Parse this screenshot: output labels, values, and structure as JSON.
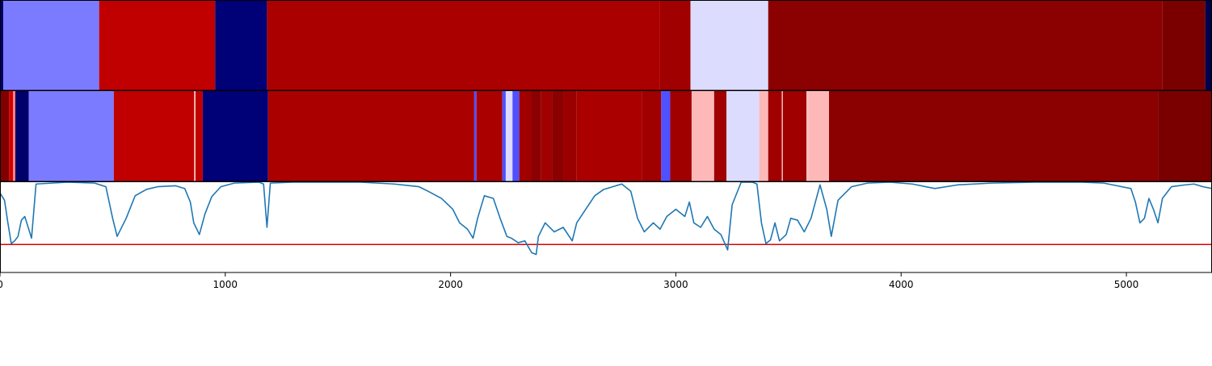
{
  "chart_data": [
    {
      "type": "heatmap",
      "x_range": [
        0,
        5380
      ],
      "segments": [
        {
          "start": 0,
          "end": 15,
          "color": "#000070"
        },
        {
          "start": 15,
          "end": 440,
          "color": "#7b7bff"
        },
        {
          "start": 440,
          "end": 955,
          "color": "#c00000"
        },
        {
          "start": 955,
          "end": 1185,
          "color": "#000077"
        },
        {
          "start": 1185,
          "end": 2930,
          "color": "#ab0000"
        },
        {
          "start": 2930,
          "end": 3065,
          "color": "#a00000"
        },
        {
          "start": 3065,
          "end": 3410,
          "color": "#dcdcff"
        },
        {
          "start": 3410,
          "end": 5160,
          "color": "#8b0000"
        },
        {
          "start": 5160,
          "end": 5350,
          "color": "#7a0000"
        },
        {
          "start": 5350,
          "end": 5380,
          "color": "#00004c"
        }
      ]
    },
    {
      "type": "heatmap",
      "x_range": [
        0,
        5380
      ],
      "segments": [
        {
          "start": 0,
          "end": 40,
          "color": "#800000"
        },
        {
          "start": 40,
          "end": 58,
          "color": "#d00000"
        },
        {
          "start": 58,
          "end": 68,
          "color": "#ff8080"
        },
        {
          "start": 68,
          "end": 128,
          "color": "#00006a"
        },
        {
          "start": 128,
          "end": 505,
          "color": "#7b7bff"
        },
        {
          "start": 505,
          "end": 862,
          "color": "#c00000"
        },
        {
          "start": 862,
          "end": 868,
          "color": "#ffc0c0"
        },
        {
          "start": 868,
          "end": 900,
          "color": "#c00000"
        },
        {
          "start": 900,
          "end": 1190,
          "color": "#000077"
        },
        {
          "start": 1190,
          "end": 2105,
          "color": "#ab0000"
        },
        {
          "start": 2105,
          "end": 2115,
          "color": "#5050ff"
        },
        {
          "start": 2115,
          "end": 2230,
          "color": "#ab0000"
        },
        {
          "start": 2230,
          "end": 2245,
          "color": "#5050ff"
        },
        {
          "start": 2245,
          "end": 2275,
          "color": "#dcdcff"
        },
        {
          "start": 2275,
          "end": 2305,
          "color": "#5050ff"
        },
        {
          "start": 2305,
          "end": 2360,
          "color": "#a00000"
        },
        {
          "start": 2360,
          "end": 2400,
          "color": "#8b0000"
        },
        {
          "start": 2400,
          "end": 2450,
          "color": "#a00000"
        },
        {
          "start": 2450,
          "end": 2500,
          "color": "#8b0000"
        },
        {
          "start": 2500,
          "end": 2560,
          "color": "#9a0000"
        },
        {
          "start": 2560,
          "end": 2850,
          "color": "#ab0000"
        },
        {
          "start": 2850,
          "end": 2935,
          "color": "#a00000"
        },
        {
          "start": 2935,
          "end": 2975,
          "color": "#5050ff"
        },
        {
          "start": 2975,
          "end": 3070,
          "color": "#a00000"
        },
        {
          "start": 3070,
          "end": 3170,
          "color": "#ffb8b8"
        },
        {
          "start": 3170,
          "end": 3225,
          "color": "#a00000"
        },
        {
          "start": 3225,
          "end": 3370,
          "color": "#dcdcff"
        },
        {
          "start": 3370,
          "end": 3410,
          "color": "#ffb8b8"
        },
        {
          "start": 3410,
          "end": 3470,
          "color": "#a00000"
        },
        {
          "start": 3470,
          "end": 3475,
          "color": "#ffc0c0"
        },
        {
          "start": 3475,
          "end": 3580,
          "color": "#a00000"
        },
        {
          "start": 3580,
          "end": 3590,
          "color": "#ffc0c0"
        },
        {
          "start": 3590,
          "end": 3680,
          "color": "#ffb8b8"
        },
        {
          "start": 3680,
          "end": 5140,
          "color": "#8b0000"
        },
        {
          "start": 5140,
          "end": 5380,
          "color": "#7a0000"
        }
      ]
    },
    {
      "type": "line",
      "x_range": [
        0,
        5380
      ],
      "xticks": [
        0,
        1000,
        2000,
        3000,
        4000,
        5000
      ],
      "xtick_labels": [
        "0",
        "1000",
        "2000",
        "3000",
        "4000",
        "5000"
      ],
      "ylim": [
        0,
        1
      ],
      "threshold": 0.31,
      "threshold_color": "#e00000",
      "line_color": "#1f77b4",
      "points": [
        [
          0,
          0.88
        ],
        [
          20,
          0.8
        ],
        [
          35,
          0.55
        ],
        [
          50,
          0.32
        ],
        [
          65,
          0.35
        ],
        [
          80,
          0.4
        ],
        [
          95,
          0.58
        ],
        [
          110,
          0.62
        ],
        [
          125,
          0.5
        ],
        [
          140,
          0.38
        ],
        [
          160,
          0.98
        ],
        [
          300,
          1.0
        ],
        [
          420,
          0.99
        ],
        [
          470,
          0.95
        ],
        [
          500,
          0.6
        ],
        [
          520,
          0.4
        ],
        [
          560,
          0.6
        ],
        [
          600,
          0.85
        ],
        [
          650,
          0.92
        ],
        [
          700,
          0.95
        ],
        [
          780,
          0.96
        ],
        [
          820,
          0.93
        ],
        [
          845,
          0.78
        ],
        [
          860,
          0.55
        ],
        [
          885,
          0.42
        ],
        [
          910,
          0.65
        ],
        [
          940,
          0.84
        ],
        [
          980,
          0.95
        ],
        [
          1040,
          0.99
        ],
        [
          1150,
          1.0
        ],
        [
          1170,
          0.98
        ],
        [
          1185,
          0.5
        ],
        [
          1200,
          0.99
        ],
        [
          1300,
          1.0
        ],
        [
          1500,
          1.0
        ],
        [
          1600,
          1.0
        ],
        [
          1750,
          0.98
        ],
        [
          1860,
          0.95
        ],
        [
          1900,
          0.9
        ],
        [
          1960,
          0.82
        ],
        [
          2010,
          0.7
        ],
        [
          2040,
          0.55
        ],
        [
          2075,
          0.48
        ],
        [
          2100,
          0.38
        ],
        [
          2120,
          0.6
        ],
        [
          2150,
          0.85
        ],
        [
          2190,
          0.82
        ],
        [
          2220,
          0.6
        ],
        [
          2250,
          0.4
        ],
        [
          2270,
          0.38
        ],
        [
          2300,
          0.33
        ],
        [
          2330,
          0.35
        ],
        [
          2360,
          0.22
        ],
        [
          2380,
          0.2
        ],
        [
          2390,
          0.4
        ],
        [
          2420,
          0.55
        ],
        [
          2460,
          0.45
        ],
        [
          2500,
          0.5
        ],
        [
          2540,
          0.35
        ],
        [
          2560,
          0.55
        ],
        [
          2600,
          0.7
        ],
        [
          2640,
          0.85
        ],
        [
          2680,
          0.92
        ],
        [
          2720,
          0.95
        ],
        [
          2760,
          0.98
        ],
        [
          2800,
          0.9
        ],
        [
          2830,
          0.6
        ],
        [
          2860,
          0.45
        ],
        [
          2900,
          0.55
        ],
        [
          2930,
          0.48
        ],
        [
          2960,
          0.62
        ],
        [
          3000,
          0.7
        ],
        [
          3040,
          0.62
        ],
        [
          3060,
          0.78
        ],
        [
          3080,
          0.55
        ],
        [
          3110,
          0.5
        ],
        [
          3140,
          0.62
        ],
        [
          3170,
          0.48
        ],
        [
          3200,
          0.42
        ],
        [
          3230,
          0.25
        ],
        [
          3250,
          0.75
        ],
        [
          3290,
          1.0
        ],
        [
          3340,
          1.0
        ],
        [
          3360,
          0.98
        ],
        [
          3380,
          0.55
        ],
        [
          3400,
          0.32
        ],
        [
          3420,
          0.36
        ],
        [
          3440,
          0.55
        ],
        [
          3460,
          0.35
        ],
        [
          3490,
          0.42
        ],
        [
          3510,
          0.6
        ],
        [
          3540,
          0.58
        ],
        [
          3570,
          0.45
        ],
        [
          3600,
          0.6
        ],
        [
          3640,
          0.97
        ],
        [
          3670,
          0.7
        ],
        [
          3690,
          0.4
        ],
        [
          3720,
          0.8
        ],
        [
          3780,
          0.95
        ],
        [
          3850,
          0.99
        ],
        [
          3950,
          1.0
        ],
        [
          4050,
          0.98
        ],
        [
          4150,
          0.93
        ],
        [
          4250,
          0.97
        ],
        [
          4400,
          0.99
        ],
        [
          4600,
          1.0
        ],
        [
          4800,
          1.0
        ],
        [
          4900,
          0.99
        ],
        [
          4960,
          0.96
        ],
        [
          5020,
          0.93
        ],
        [
          5040,
          0.78
        ],
        [
          5060,
          0.55
        ],
        [
          5080,
          0.6
        ],
        [
          5100,
          0.82
        ],
        [
          5120,
          0.7
        ],
        [
          5140,
          0.55
        ],
        [
          5160,
          0.82
        ],
        [
          5200,
          0.95
        ],
        [
          5260,
          0.97
        ],
        [
          5300,
          0.98
        ],
        [
          5340,
          0.95
        ],
        [
          5380,
          0.93
        ]
      ]
    }
  ]
}
